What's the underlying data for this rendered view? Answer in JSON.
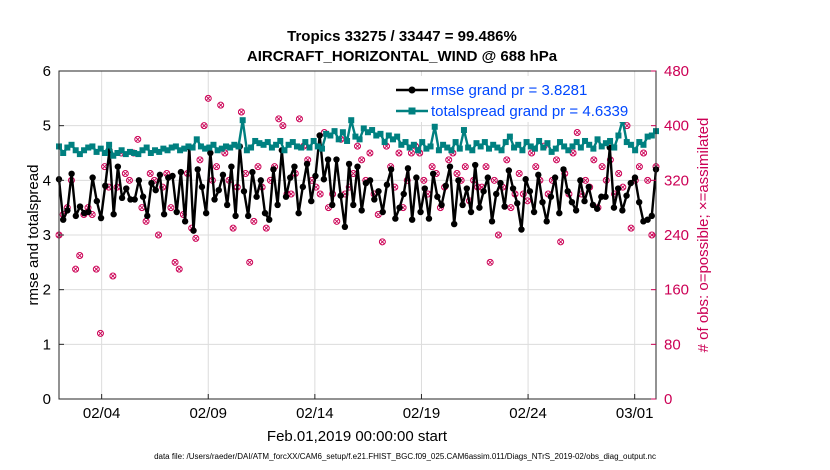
{
  "chart_data": {
    "type": "line",
    "title_line1": "Tropics 33275 / 33447 = 99.486%",
    "title_line2": "AIRCRAFT_HORIZONTAL_WIND @ 688 hPa",
    "xlabel": "Feb.01,2019 00:00:00 start",
    "ylabel_left": "rmse and totalspread",
    "ylabel_right": "# of obs: o=possible; ×=assimilated",
    "footer": "data file: /Users/raeder/DAI/ATM_forcXX/CAM6_setup/f.e21.FHIST_BGC.f09_025.CAM6assim.011/Diags_NTrS_2019-02/obs_diag_output.nc",
    "xlim": [
      1,
      29
    ],
    "ylim_left": [
      0,
      6
    ],
    "ylim_right": [
      0,
      480
    ],
    "x_ticks": [
      3,
      8,
      13,
      18,
      23,
      28
    ],
    "x_tick_labels": [
      "02/04",
      "02/09",
      "02/14",
      "02/19",
      "02/24",
      "03/01"
    ],
    "y_left_ticks": [
      "0",
      "1",
      "2",
      "3",
      "4",
      "5",
      "6"
    ],
    "y_right_ticks": [
      "0",
      "80",
      "160",
      "240",
      "320",
      "400",
      "480"
    ],
    "colors": {
      "rmse": "#000000",
      "spread": "#008080",
      "obs": "#cc0055",
      "legend_text": "#0047ff"
    },
    "series": [
      {
        "name": "rmse grand pr = 3.8281",
        "values": [
          4.02,
          3.28,
          3.45,
          4.12,
          3.35,
          3.52,
          3.4,
          3.42,
          4.05,
          3.62,
          3.31,
          3.9,
          4.55,
          3.38,
          4.25,
          3.68,
          3.85,
          3.65,
          3.65,
          4.0,
          3.7,
          3.35,
          3.95,
          3.82,
          4.1,
          3.38,
          4.05,
          4.08,
          3.42,
          4.15,
          3.25,
          4.6,
          3.08,
          4.2,
          3.88,
          3.4,
          4.5,
          3.65,
          3.82,
          4.1,
          3.55,
          4.25,
          3.35,
          4.62,
          3.8,
          3.35,
          4.15,
          3.7,
          4.0,
          3.4,
          3.28,
          4.2,
          3.55,
          4.55,
          3.7,
          4.05,
          4.25,
          3.4,
          3.88,
          4.3,
          3.62,
          4.08,
          4.82,
          4.02,
          4.38,
          3.55,
          4.38,
          3.72,
          3.15,
          4.3,
          3.55,
          4.25,
          3.45,
          3.95,
          4.0,
          3.65,
          3.8,
          3.42,
          3.92,
          4.2,
          3.3,
          3.5,
          3.75,
          4.22,
          3.28,
          4.05,
          3.42,
          3.85,
          3.3,
          4.12,
          3.7,
          3.55,
          3.9,
          4.25,
          3.2,
          4.0,
          3.55,
          3.85,
          3.42,
          4.28,
          3.5,
          3.8,
          4.05,
          3.25,
          3.75,
          3.95,
          3.52,
          4.18,
          3.85,
          3.58,
          3.1,
          4.02,
          3.8,
          3.42,
          4.1,
          3.6,
          3.25,
          3.7,
          4.05,
          3.4,
          4.2,
          3.8,
          3.6,
          3.45,
          4.0,
          3.62,
          3.88,
          3.55,
          3.48,
          3.7,
          3.7,
          4.6,
          3.5,
          3.85,
          3.45,
          3.72,
          3.95,
          4.05,
          3.6,
          3.25,
          3.28,
          3.35,
          4.2
        ],
        "color": "#000000"
      },
      {
        "name": "totalspread grand pr = 4.6339",
        "values": [
          4.62,
          4.5,
          4.6,
          4.65,
          4.55,
          4.48,
          4.55,
          4.6,
          4.62,
          4.52,
          4.58,
          4.5,
          4.65,
          4.45,
          4.5,
          4.55,
          4.48,
          4.52,
          4.5,
          4.48,
          4.55,
          4.6,
          4.5,
          4.55,
          4.52,
          4.58,
          4.55,
          4.6,
          4.62,
          4.55,
          4.58,
          4.62,
          4.6,
          4.75,
          4.62,
          4.58,
          4.6,
          4.65,
          4.55,
          4.58,
          4.62,
          4.6,
          4.65,
          4.62,
          5.1,
          4.55,
          4.6,
          4.72,
          4.68,
          4.65,
          4.7,
          4.6,
          4.65,
          4.72,
          4.55,
          4.65,
          4.7,
          4.62,
          4.6,
          4.7,
          4.6,
          4.72,
          4.62,
          4.58,
          4.85,
          4.82,
          4.9,
          4.75,
          4.88,
          4.72,
          5.1,
          4.8,
          4.75,
          4.95,
          4.88,
          4.92,
          4.82,
          4.85,
          4.7,
          4.82,
          4.75,
          4.8,
          4.65,
          4.7,
          4.6,
          4.65,
          4.55,
          4.7,
          4.58,
          4.62,
          4.98,
          4.55,
          4.65,
          4.6,
          4.55,
          4.7,
          4.58,
          4.92,
          4.6,
          4.55,
          4.68,
          4.62,
          4.7,
          4.58,
          4.65,
          4.6,
          4.55,
          4.7,
          4.8,
          4.6,
          4.65,
          4.55,
          4.7,
          4.62,
          4.58,
          4.72,
          4.6,
          4.68,
          4.52,
          4.58,
          4.7,
          4.62,
          4.55,
          4.62,
          4.7,
          4.6,
          4.72,
          4.65,
          4.58,
          4.75,
          4.62,
          4.68,
          4.72,
          4.6,
          4.82,
          5.1,
          4.7,
          4.65,
          4.55,
          4.7,
          4.65,
          4.8,
          4.82,
          4.9
        ],
        "color": "#008080"
      }
    ],
    "obs_possible": [
      240,
      270,
      280,
      320,
      190,
      210,
      270,
      280,
      270,
      190,
      96,
      340,
      310,
      180,
      310,
      360,
      330,
      320,
      360,
      380,
      280,
      260,
      330,
      320,
      240,
      310,
      330,
      280,
      200,
      190,
      270,
      330,
      250,
      235,
      350,
      400,
      440,
      320,
      340,
      430,
      360,
      320,
      250,
      310,
      420,
      330,
      200,
      260,
      340,
      310,
      250,
      320,
      340,
      410,
      400,
      300,
      300,
      330,
      410,
      370,
      350,
      320,
      310,
      300,
      390,
      280,
      300,
      260,
      380,
      300,
      310,
      330,
      370,
      350,
      320,
      360,
      300,
      270,
      230,
      370,
      340,
      310,
      360,
      280,
      320,
      360,
      370,
      360,
      320,
      300,
      340,
      330,
      280,
      310,
      350,
      360,
      330,
      320,
      340,
      290,
      320,
      310,
      310,
      340,
      200,
      320,
      240,
      310,
      350,
      280,
      300,
      330,
      300,
      290,
      360,
      340,
      320,
      370,
      300,
      320,
      350,
      230,
      330,
      300,
      360,
      390,
      300,
      320,
      310,
      350,
      280,
      340,
      320,
      350,
      300,
      330,
      310,
      400,
      250,
      320,
      340,
      360,
      320,
      240,
      340
    ]
  }
}
